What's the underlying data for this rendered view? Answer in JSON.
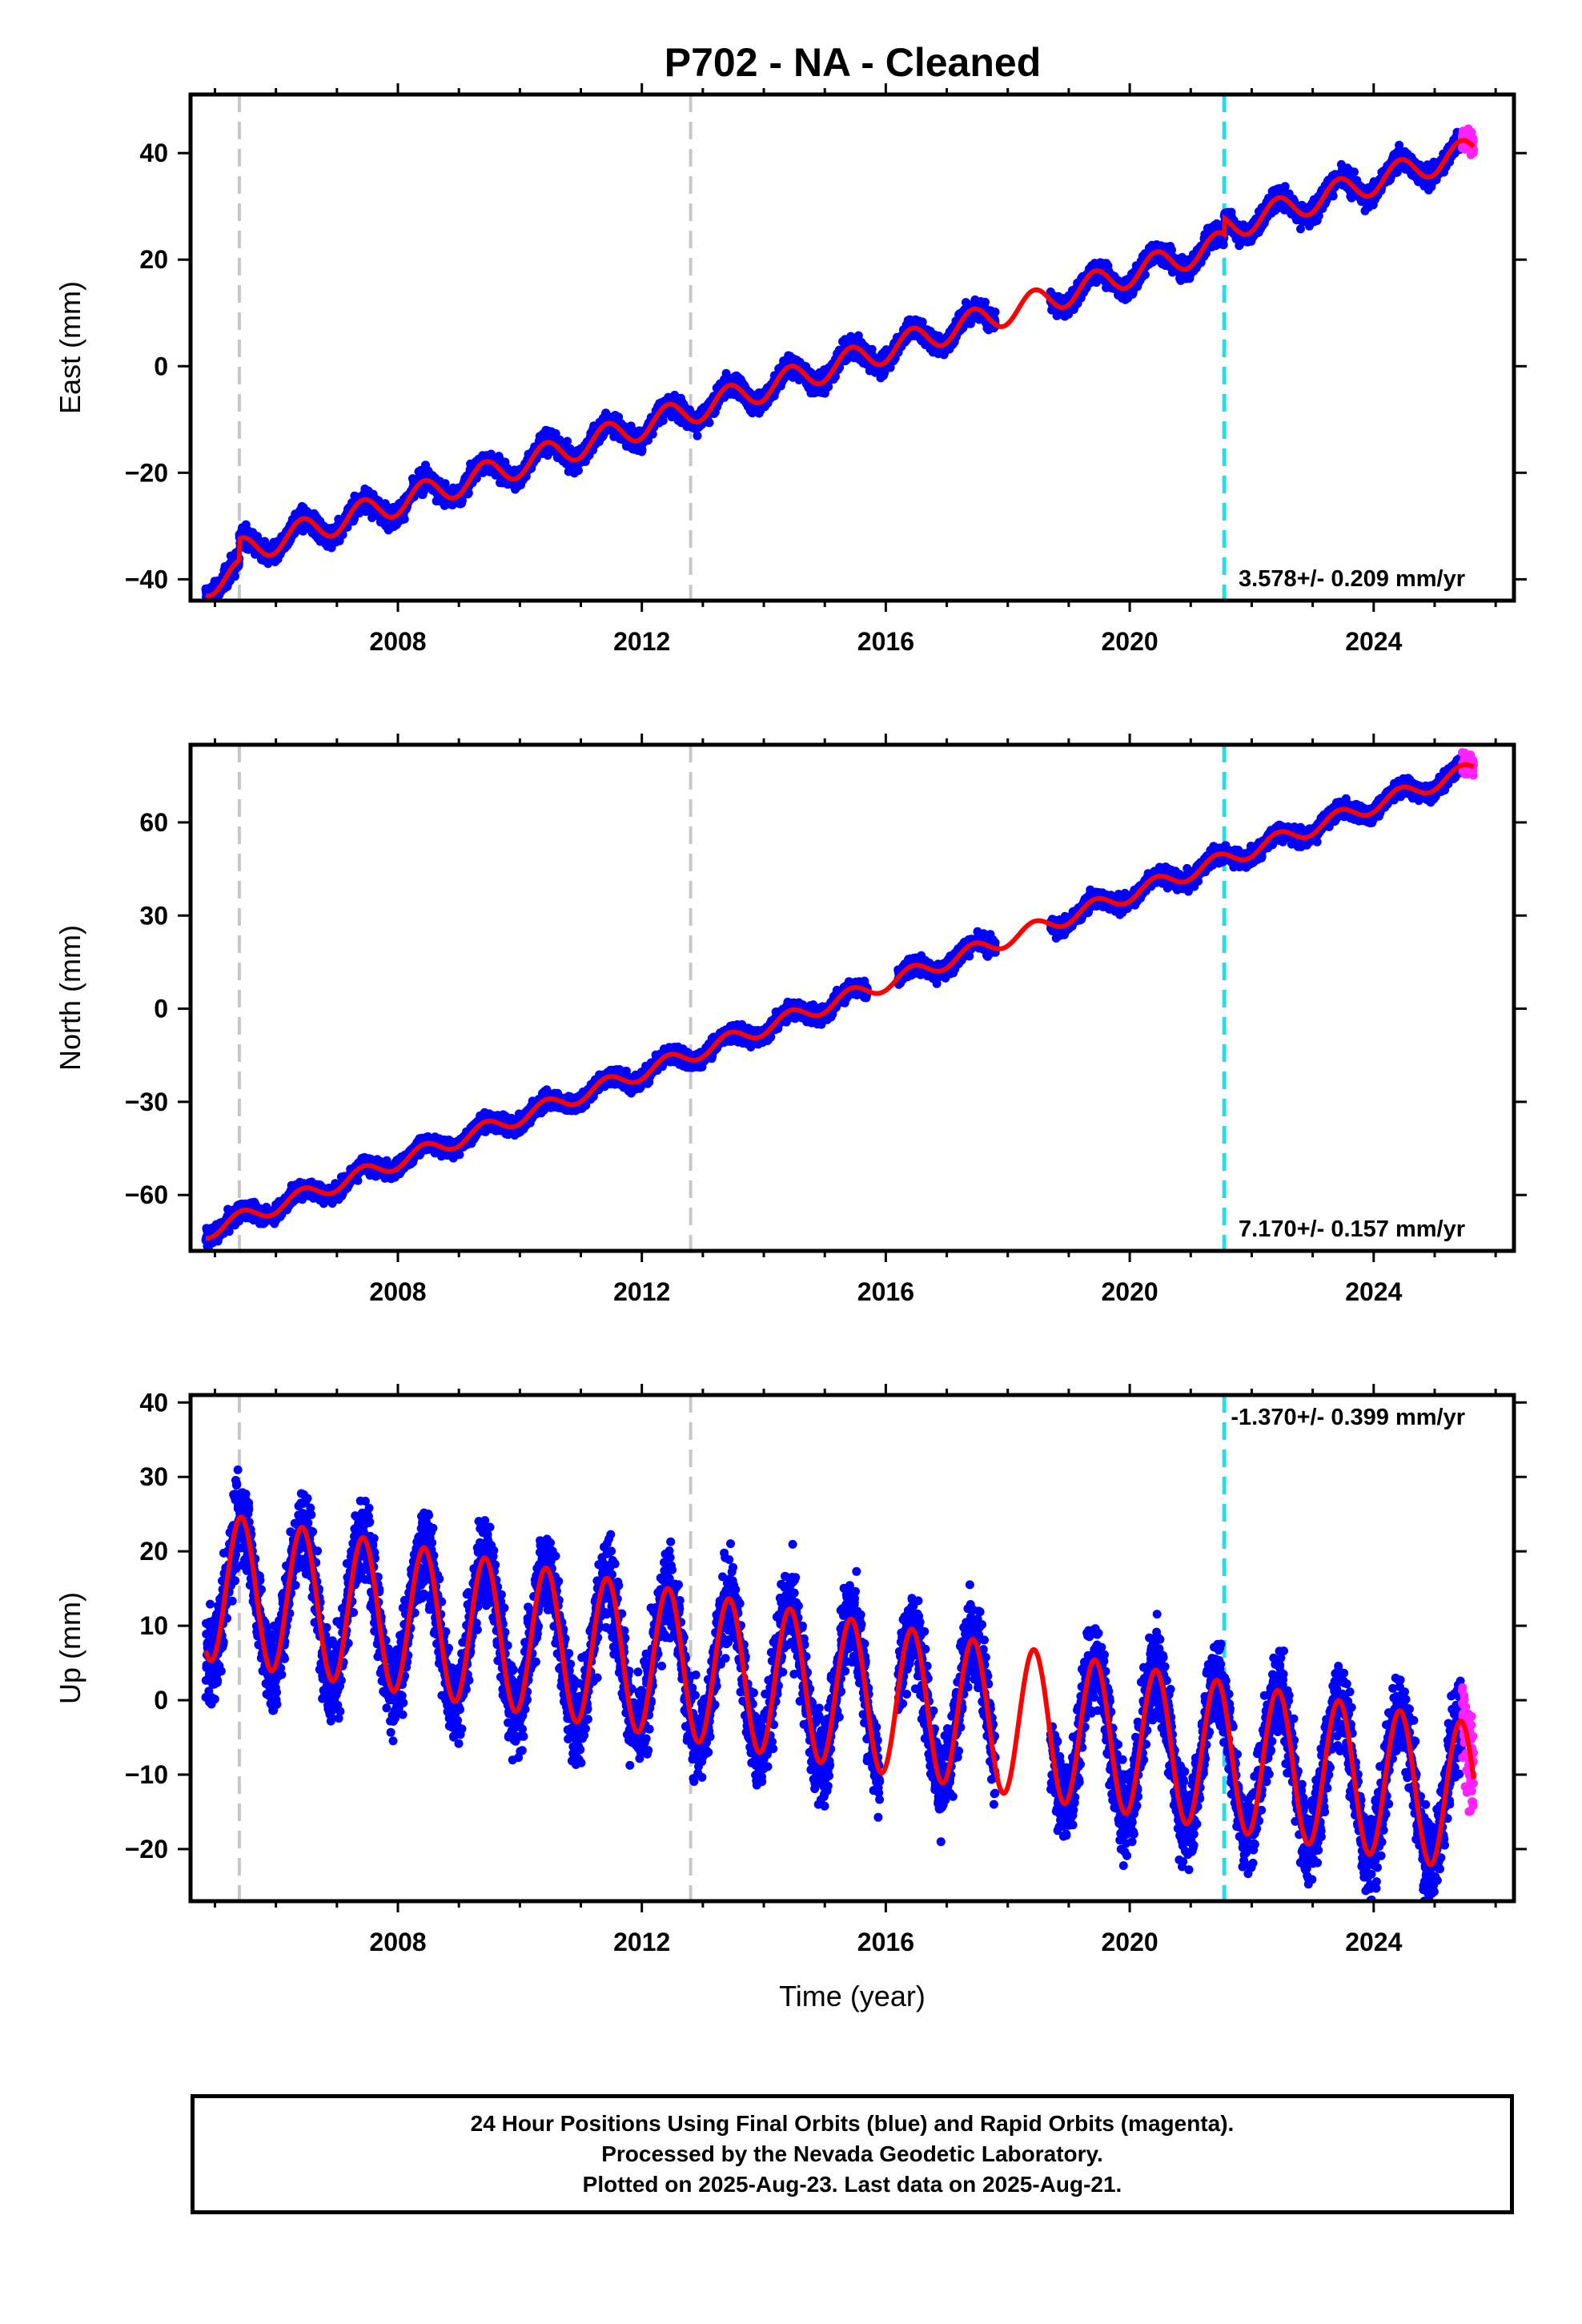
{
  "title": "P702  - NA - Cleaned",
  "colors": {
    "final": "#0000ff",
    "rapid": "#ff22ff",
    "model": "#ff0000",
    "antenna_change": "#c8c8c8",
    "equipment_change": "#22e0e8"
  },
  "events": {
    "gray_dashed": [
      2005.4,
      2012.8
    ],
    "cyan_dashed": [
      2021.55
    ]
  },
  "xaxis": {
    "range": [
      2004.6,
      2026.3
    ],
    "ticks": [
      2008,
      2012,
      2016,
      2020,
      2024
    ],
    "tick_labels": [
      "2008",
      "2012",
      "2016",
      "2020",
      "2024"
    ],
    "label": "Time (year)"
  },
  "chart_data": [
    {
      "type": "scatter",
      "component": "east",
      "ylabel": "East (mm)",
      "ylim": [
        -44,
        51
      ],
      "yticks": [
        -40,
        -20,
        0,
        20,
        40
      ],
      "ytick_labels": [
        "−40",
        "−20",
        "0",
        "20",
        "40"
      ],
      "rate_text": "3.578+/- 0.209 mm/yr",
      "rate_mm_yr": 3.578,
      "trend_anchor": [
        2015.0,
        -0.5
      ],
      "seasonal_amplitude": 2.5,
      "noise": 1.3,
      "offset_at_2005_4": 4,
      "offset_at_2021_55": 3,
      "gaps": [
        [
          2017.8,
          2018.7
        ]
      ],
      "series": [
        {
          "name": "Final Orbits (blue)",
          "x_range": [
            2004.85,
            2025.45
          ]
        },
        {
          "name": "Rapid Orbits (magenta)",
          "x_range": [
            2025.45,
            2025.64
          ]
        }
      ]
    },
    {
      "type": "scatter",
      "component": "north",
      "ylabel": "North (mm)",
      "ylim": [
        -78,
        85
      ],
      "yticks": [
        -60,
        -30,
        0,
        30,
        60
      ],
      "ytick_labels": [
        "−60",
        "−30",
        "0",
        "30",
        "60"
      ],
      "rate_text": "7.170+/- 0.157 mm/yr",
      "rate_mm_yr": 7.17,
      "trend_anchor": [
        2015.0,
        1
      ],
      "seasonal_amplitude": 2.5,
      "noise": 1.8,
      "offset_at_2005_4": 0,
      "offset_at_2021_55": 0,
      "gaps": [
        [
          2015.7,
          2016.2
        ],
        [
          2017.8,
          2018.7
        ]
      ],
      "series": [
        {
          "name": "Final Orbits (blue)",
          "x_range": [
            2004.85,
            2025.45
          ]
        },
        {
          "name": "Rapid Orbits (magenta)",
          "x_range": [
            2025.45,
            2025.64
          ]
        }
      ]
    },
    {
      "type": "scatter",
      "component": "up",
      "ylabel": "Up (mm)",
      "ylim": [
        -27,
        41
      ],
      "yticks": [
        -20,
        -10,
        0,
        10,
        20,
        30,
        40
      ],
      "ytick_labels": [
        "−20",
        "−10",
        "0",
        "10",
        "20",
        "30",
        "40"
      ],
      "rate_text": "-1.370+/- 0.399 mm/yr",
      "rate_mm_yr": -1.37,
      "trend_anchor": [
        2015.0,
        1.5
      ],
      "seasonal_amplitude": 10,
      "noise": 4.0,
      "offset_at_2005_4": 0,
      "offset_at_2021_55": 0,
      "gaps": [
        [
          2015.9,
          2016.2
        ],
        [
          2017.8,
          2018.7
        ]
      ],
      "series": [
        {
          "name": "Final Orbits (blue)",
          "x_range": [
            2004.85,
            2025.45
          ]
        },
        {
          "name": "Rapid Orbits (magenta)",
          "x_range": [
            2025.45,
            2025.64
          ]
        }
      ]
    }
  ],
  "footer": {
    "line1": "24 Hour Positions Using Final Orbits (blue) and Rapid Orbits (magenta).",
    "line2": "Processed by the Nevada Geodetic Laboratory.",
    "line3": "Plotted on 2025-Aug-23. Last data on 2025-Aug-21."
  }
}
